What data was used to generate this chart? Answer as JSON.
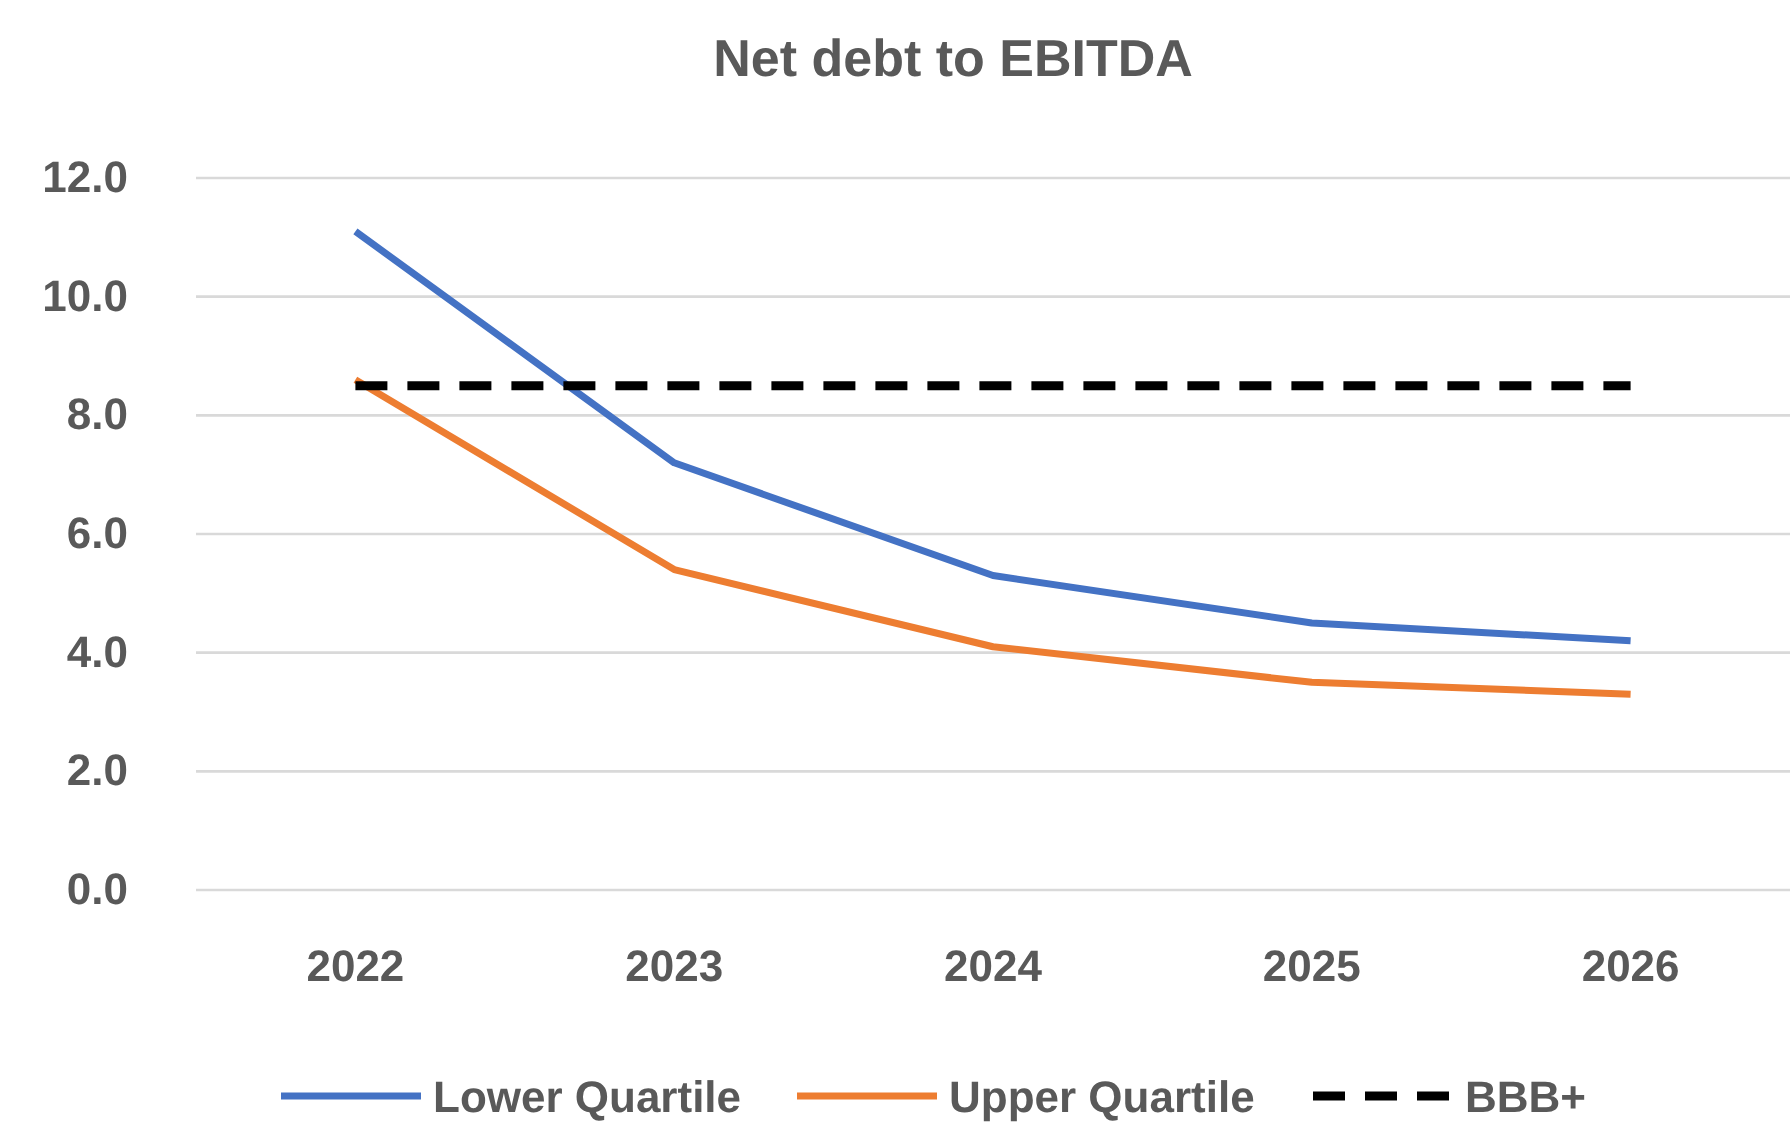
{
  "chart_data": {
    "type": "line",
    "title": "Net debt to EBITDA",
    "categories": [
      "2022",
      "2023",
      "2024",
      "2025",
      "2026"
    ],
    "series": [
      {
        "name": "Lower Quartile",
        "color": "#4472c4",
        "values": [
          11.1,
          7.2,
          5.3,
          4.5,
          4.2
        ]
      },
      {
        "name": "Upper Quartile",
        "color": "#ed7d31",
        "values": [
          8.6,
          5.4,
          4.1,
          3.5,
          3.3
        ]
      },
      {
        "name": "BBB+",
        "color": "#000000",
        "values": [
          8.5,
          8.5,
          8.5,
          8.5,
          8.5
        ],
        "line_style": "dashed"
      }
    ],
    "ylim": [
      0,
      12
    ],
    "yticks": [
      {
        "value": 0,
        "label": "0.0"
      },
      {
        "value": 2,
        "label": "2.0"
      },
      {
        "value": 4,
        "label": "4.0"
      },
      {
        "value": 6,
        "label": "6.0"
      },
      {
        "value": 8,
        "label": "8.0"
      },
      {
        "value": 10,
        "label": "10.0"
      },
      {
        "value": 12,
        "label": "12.0"
      }
    ],
    "grid": "y",
    "legend": "bottom",
    "marker": "none",
    "line_style": "solid"
  }
}
